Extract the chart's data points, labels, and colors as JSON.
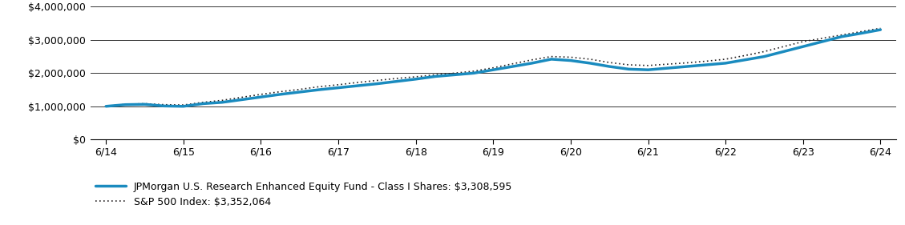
{
  "x_labels": [
    "6/14",
    "6/15",
    "6/16",
    "6/17",
    "6/18",
    "6/19",
    "6/20",
    "6/21",
    "6/22",
    "6/23",
    "6/24"
  ],
  "fund_values": [
    1000000,
    1050000,
    1060000,
    1010000,
    1000000,
    1080000,
    1120000,
    1200000,
    1280000,
    1360000,
    1430000,
    1500000,
    1560000,
    1620000,
    1680000,
    1750000,
    1820000,
    1900000,
    1950000,
    2000000,
    2100000,
    2200000,
    2300000,
    2420000,
    2380000,
    2300000,
    2200000,
    2120000,
    2100000,
    2150000,
    2200000,
    2250000,
    2300000,
    2400000,
    2500000,
    2650000,
    2800000,
    2950000,
    3100000,
    3200000,
    3308595
  ],
  "sp500_values": [
    1000000,
    1060000,
    1080000,
    1050000,
    1040000,
    1120000,
    1180000,
    1270000,
    1360000,
    1440000,
    1510000,
    1590000,
    1650000,
    1720000,
    1780000,
    1840000,
    1890000,
    1950000,
    2000000,
    2060000,
    2160000,
    2280000,
    2400000,
    2500000,
    2480000,
    2420000,
    2320000,
    2250000,
    2230000,
    2270000,
    2310000,
    2360000,
    2420000,
    2530000,
    2650000,
    2800000,
    2950000,
    3050000,
    3150000,
    3250000,
    3352064
  ],
  "fund_color": "#1a8bbf",
  "sp500_color": "#231f20",
  "fund_label": "JPMorgan U.S. Research Enhanced Equity Fund - Class I Shares: $3,308,595",
  "sp500_label": "S&P 500 Index: $3,352,064",
  "ylim": [
    0,
    4000000
  ],
  "yticks": [
    0,
    1000000,
    2000000,
    3000000,
    4000000
  ],
  "ytick_labels": [
    "$0",
    "$1,000,000",
    "$2,000,000",
    "$3,000,000",
    "$4,000,000"
  ],
  "fund_linewidth": 2.5,
  "sp500_linewidth": 1.2,
  "background_color": "#ffffff",
  "grid_color": "#333333",
  "tick_fontsize": 9,
  "legend_fontsize": 9,
  "n_points": 41,
  "n_xlabels": 11
}
